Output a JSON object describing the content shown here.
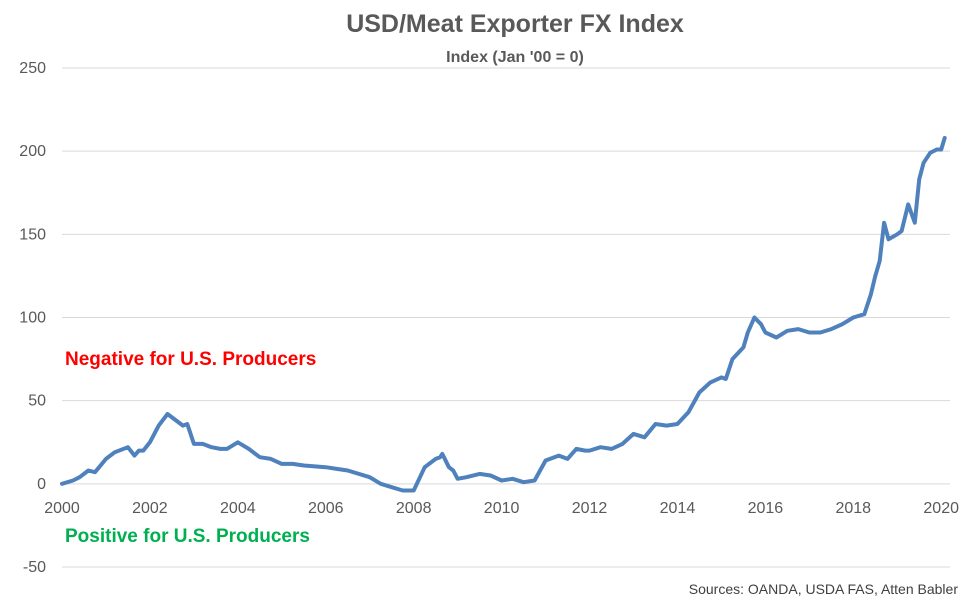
{
  "chart_data": {
    "type": "line",
    "title": "USD/Meat Exporter FX Index",
    "subtitle": "Index (Jan '00 = 0)",
    "xlabel": "",
    "ylabel": "",
    "xlim": [
      2000,
      2020.2
    ],
    "ylim": [
      -50,
      250
    ],
    "x_ticks": [
      2000,
      2002,
      2004,
      2006,
      2008,
      2010,
      2012,
      2014,
      2016,
      2018,
      2020
    ],
    "y_ticks": [
      -50,
      0,
      50,
      100,
      150,
      200,
      250
    ],
    "grid": "horizontal",
    "legend": "none",
    "series": [
      {
        "color": "#4F81BD",
        "x": [
          2000.0,
          2000.25,
          2000.4,
          2000.6,
          2000.75,
          2001.0,
          2001.2,
          2001.5,
          2001.65,
          2001.75,
          2001.85,
          2002.0,
          2002.2,
          2002.4,
          2002.6,
          2002.75,
          2002.85,
          2003.0,
          2003.2,
          2003.4,
          2003.6,
          2003.75,
          2004.0,
          2004.25,
          2004.5,
          2004.75,
          2005.0,
          2005.25,
          2005.5,
          2006.0,
          2006.25,
          2006.5,
          2007.0,
          2007.25,
          2007.5,
          2007.75,
          2008.0,
          2008.25,
          2008.5,
          2008.6,
          2008.65,
          2008.8,
          2008.9,
          2009.0,
          2009.2,
          2009.5,
          2009.75,
          2010.0,
          2010.25,
          2010.5,
          2010.75,
          2011.0,
          2011.3,
          2011.5,
          2011.7,
          2011.9,
          2012.0,
          2012.25,
          2012.5,
          2012.75,
          2013.0,
          2013.25,
          2013.5,
          2013.75,
          2014.0,
          2014.25,
          2014.5,
          2014.75,
          2015.0,
          2015.1,
          2015.25,
          2015.5,
          2015.6,
          2015.75,
          2015.9,
          2016.0,
          2016.25,
          2016.5,
          2016.75,
          2017.0,
          2017.25,
          2017.5,
          2017.75,
          2018.0,
          2018.25,
          2018.4,
          2018.5,
          2018.6,
          2018.7,
          2018.8,
          2019.0,
          2019.1,
          2019.25,
          2019.4,
          2019.5,
          2019.6,
          2019.75,
          2019.9,
          2020.0,
          2020.08
        ],
        "y": [
          0,
          2,
          4,
          8,
          7,
          15,
          19,
          22,
          17,
          20,
          20,
          25,
          35,
          42,
          38,
          35,
          36,
          24,
          24,
          22,
          21,
          21,
          25,
          21,
          16,
          15,
          12,
          12,
          11,
          10,
          9,
          8,
          4,
          0,
          -2,
          -4,
          -4,
          10,
          15,
          16,
          18,
          10,
          8,
          3,
          4,
          6,
          5,
          2,
          3,
          1,
          2,
          14,
          17,
          15,
          21,
          20,
          20,
          22,
          21,
          24,
          30,
          28,
          36,
          35,
          36,
          43,
          55,
          61,
          64,
          63,
          75,
          82,
          91,
          100,
          96,
          91,
          88,
          92,
          93,
          91,
          91,
          93,
          96,
          100,
          102,
          114,
          125,
          134,
          157,
          147,
          150,
          152,
          168,
          157,
          183,
          193,
          199,
          201,
          201,
          208
        ]
      }
    ],
    "annotations": [
      {
        "text": "Negative for U.S. Producers",
        "color": "#FF0000"
      },
      {
        "text": "Positive for U.S. Producers",
        "color": "#00B050"
      }
    ],
    "source": "Sources: OANDA, USDA FAS, Atten Babler"
  }
}
